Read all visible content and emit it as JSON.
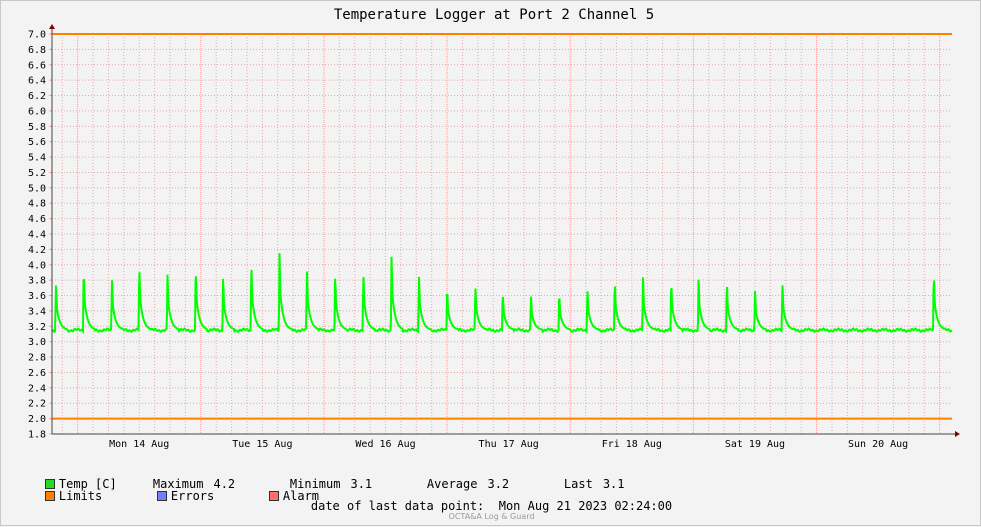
{
  "chart_data": {
    "type": "line",
    "title": "Temperature Logger at Port 2 Channel 5",
    "xlabel": "",
    "ylabel": "",
    "ylim": [
      1.8,
      7.0
    ],
    "yticks": [
      "7.0",
      "6.8",
      "6.6",
      "6.4",
      "6.2",
      "6.0",
      "5.8",
      "5.6",
      "5.4",
      "5.2",
      "5.0",
      "4.8",
      "4.6",
      "4.4",
      "4.2",
      "4.0",
      "3.8",
      "3.6",
      "3.4",
      "3.2",
      "3.0",
      "2.8",
      "2.6",
      "2.4",
      "2.2",
      "2.0",
      "1.8"
    ],
    "xlim": [
      "Aug 13 2023 19:00",
      "Aug 21 2023 02:24"
    ],
    "xticks": [
      {
        "label": "Mon 14 Aug",
        "date": "Aug 14 2023 12:00"
      },
      {
        "label": "Tue 15 Aug",
        "date": "Aug 15 2023 12:00"
      },
      {
        "label": "Wed 16 Aug",
        "date": "Aug 16 2023 12:00"
      },
      {
        "label": "Thu 17 Aug",
        "date": "Aug 17 2023 12:00"
      },
      {
        "label": "Fri 18 Aug",
        "date": "Aug 18 2023 12:00"
      },
      {
        "label": "Sat 19 Aug",
        "date": "Aug 19 2023 12:00"
      },
      {
        "label": "Sun 20 Aug",
        "date": "Aug 20 2023 12:00"
      }
    ],
    "grid": true,
    "limits": {
      "upper": 7.0,
      "lower": 2.0
    },
    "series": [
      {
        "name": "Temp [C]",
        "color": "#00ff00",
        "baseline": 3.15,
        "peaks": [
          {
            "x": "Aug 13 2023 19:45",
            "y": 3.78
          },
          {
            "x": "Aug 14 2023 01:10",
            "y": 3.97
          },
          {
            "x": "Aug 14 2023 06:40",
            "y": 3.85
          },
          {
            "x": "Aug 14 2023 12:00",
            "y": 4.03
          },
          {
            "x": "Aug 14 2023 17:30",
            "y": 3.89
          },
          {
            "x": "Aug 14 2023 23:00",
            "y": 4.0
          },
          {
            "x": "Aug 15 2023 04:20",
            "y": 3.86
          },
          {
            "x": "Aug 15 2023 09:50",
            "y": 4.05
          },
          {
            "x": "Aug 15 2023 15:20",
            "y": 4.16
          },
          {
            "x": "Aug 15 2023 20:40",
            "y": 3.98
          },
          {
            "x": "Aug 16 2023 02:10",
            "y": 3.9
          },
          {
            "x": "Aug 16 2023 07:40",
            "y": 3.93
          },
          {
            "x": "Aug 16 2023 13:10",
            "y": 4.12
          },
          {
            "x": "Aug 16 2023 18:30",
            "y": 3.89
          },
          {
            "x": "Aug 17 2023 00:00",
            "y": 3.71
          },
          {
            "x": "Aug 17 2023 05:30",
            "y": 3.75
          },
          {
            "x": "Aug 17 2023 10:50",
            "y": 3.67
          },
          {
            "x": "Aug 17 2023 16:20",
            "y": 3.61
          },
          {
            "x": "Aug 17 2023 21:50",
            "y": 3.65
          },
          {
            "x": "Aug 18 2023 03:20",
            "y": 3.7
          },
          {
            "x": "Aug 18 2023 08:40",
            "y": 3.82
          },
          {
            "x": "Aug 18 2023 14:10",
            "y": 3.86
          },
          {
            "x": "Aug 18 2023 19:40",
            "y": 3.82
          },
          {
            "x": "Aug 19 2023 01:00",
            "y": 3.83
          },
          {
            "x": "Aug 19 2023 06:30",
            "y": 3.8
          },
          {
            "x": "Aug 19 2023 12:00",
            "y": 3.67
          },
          {
            "x": "Aug 19 2023 17:20",
            "y": 3.79
          },
          {
            "x": "Aug 20 2023 22:50",
            "y": 3.92
          }
        ]
      }
    ]
  },
  "legend": {
    "temp": {
      "label": "Temp [C]",
      "color": "#22dd22"
    },
    "limits": {
      "label": "Limits",
      "color": "#ff7f00"
    },
    "errors": {
      "label": "Errors",
      "color": "#6f7fff"
    },
    "alarm": {
      "label": "Alarm",
      "color": "#ff6f6f"
    }
  },
  "stats": {
    "maximum_label": "Maximum",
    "maximum": "4.2",
    "minimum_label": "Minimum",
    "minimum": "3.1",
    "average_label": "Average",
    "average": "3.2",
    "last_label": "Last",
    "last": "3.1"
  },
  "footer": {
    "label": "date of last data point:",
    "value": "Mon Aug 21 2023 02:24:00",
    "brand": "OCTA&A Log & Guard"
  },
  "colors": {
    "grid_major": "#ff9c9c",
    "grid_minor": "#e4aaaa",
    "axis": "#c8c8c8",
    "arrow": "#880000",
    "limit_line": "#ff7f00",
    "data_line": "#00ff00"
  }
}
